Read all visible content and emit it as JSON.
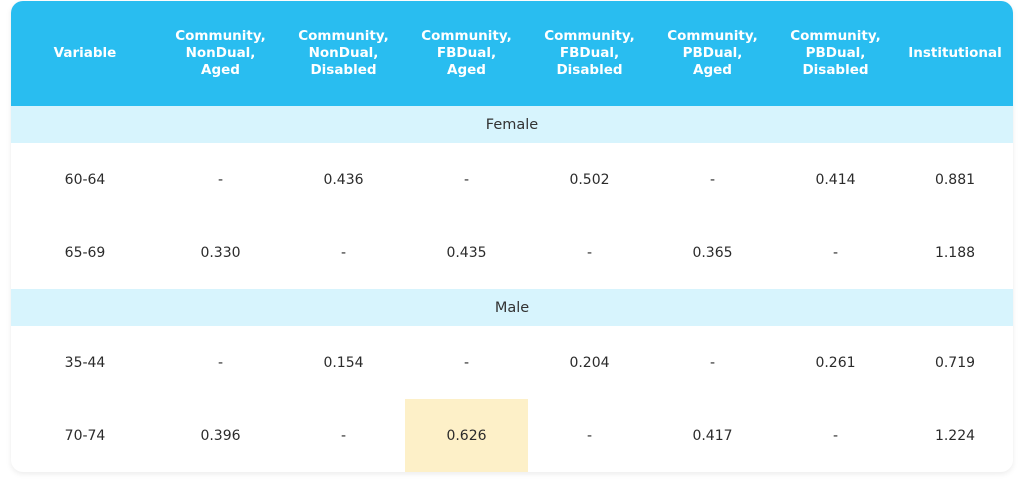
{
  "table": {
    "headers": [
      "Variable",
      "Community,\nNonDual,\nAged",
      "Community,\nNonDual,\nDisabled",
      "Community,\nFBDual,\nAged",
      "Community,\nFBDual,\nDisabled",
      "Community,\nPBDual,\nAged",
      "Community,\nPBDual,\nDisabled",
      "Institutional"
    ],
    "sections": [
      {
        "label": "Female",
        "rows": [
          [
            "60-64",
            "-",
            "0.436",
            "-",
            "0.502",
            "-",
            "0.414",
            "0.881"
          ],
          [
            "65-69",
            "0.330",
            "-",
            "0.435",
            "-",
            "0.365",
            "-",
            "1.188"
          ]
        ]
      },
      {
        "label": "Male",
        "rows": [
          [
            "35-44",
            "-",
            "0.154",
            "-",
            "0.204",
            "-",
            "0.261",
            "0.719"
          ],
          [
            "70-74",
            "0.396",
            "-",
            "0.626",
            "-",
            "0.417",
            "-",
            "1.224"
          ]
        ]
      }
    ],
    "highlighted_cell": {
      "section": 1,
      "row": 1,
      "col": 3
    },
    "colors": {
      "header_bg": "#29bdf0",
      "section_bg": "#d7f4fd",
      "highlight_bg": "#fdf0c8"
    }
  }
}
